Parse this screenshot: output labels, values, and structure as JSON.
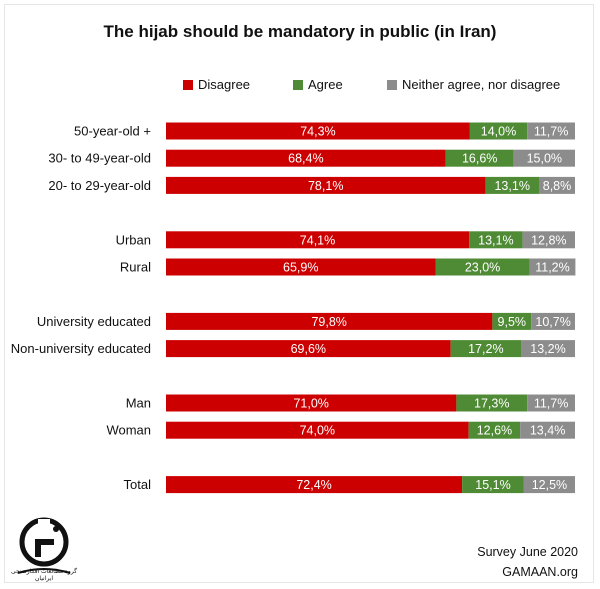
{
  "title": "The hijab should be mandatory in public (in Iran)",
  "colors": {
    "disagree": "#cc0000",
    "agree": "#4f8a35",
    "neither": "#8c8c8c"
  },
  "legend": [
    {
      "key": "disagree",
      "label": "Disagree"
    },
    {
      "key": "agree",
      "label": "Agree"
    },
    {
      "key": "neither",
      "label": "Neither agree, nor disagree"
    }
  ],
  "chart_data": {
    "type": "bar",
    "orientation": "horizontal",
    "stacked": true,
    "categories": [
      "50-year-old +",
      "30- to 49-year-old",
      "20- to 29-year-old",
      "Urban",
      "Rural",
      "University educated",
      "Non-university educated",
      "Man",
      "Woman",
      "Total"
    ],
    "groups": [
      [
        0,
        1,
        2
      ],
      [
        3,
        4
      ],
      [
        5,
        6
      ],
      [
        7,
        8
      ],
      [
        9
      ]
    ],
    "series": [
      {
        "name": "Disagree",
        "key": "disagree",
        "values": [
          74.3,
          68.4,
          78.1,
          74.1,
          65.9,
          79.8,
          69.6,
          71.0,
          74.0,
          72.4
        ]
      },
      {
        "name": "Agree",
        "key": "agree",
        "values": [
          14.0,
          16.6,
          13.1,
          13.1,
          23.0,
          9.5,
          17.2,
          17.3,
          12.6,
          15.1
        ]
      },
      {
        "name": "Neither agree, nor disagree",
        "key": "neither",
        "values": [
          11.7,
          15.0,
          8.8,
          12.8,
          11.2,
          10.7,
          13.2,
          11.7,
          13.4,
          12.5
        ]
      }
    ],
    "labels": [
      [
        "74,3%",
        "14,0%",
        "11,7%"
      ],
      [
        "68,4%",
        "16,6%",
        "15,0%"
      ],
      [
        "78,1%",
        "13,1%",
        "8,8%"
      ],
      [
        "74,1%",
        "13,1%",
        "12,8%"
      ],
      [
        "65,9%",
        "23,0%",
        "11,2%"
      ],
      [
        "79,8%",
        "9,5%",
        "10,7%"
      ],
      [
        "69,6%",
        "17,2%",
        "13,2%"
      ],
      [
        "71,0%",
        "17,3%",
        "11,7%"
      ],
      [
        "74,0%",
        "12,6%",
        "13,4%"
      ],
      [
        "72,4%",
        "15,1%",
        "12,5%"
      ]
    ],
    "xlim": [
      0,
      100
    ]
  },
  "footer": {
    "survey": "Survey June 2020",
    "site": "GAMAAN.org"
  },
  "logo": {
    "subtitle": "گروه مطالعات افکارسنجی ایرانیان"
  }
}
